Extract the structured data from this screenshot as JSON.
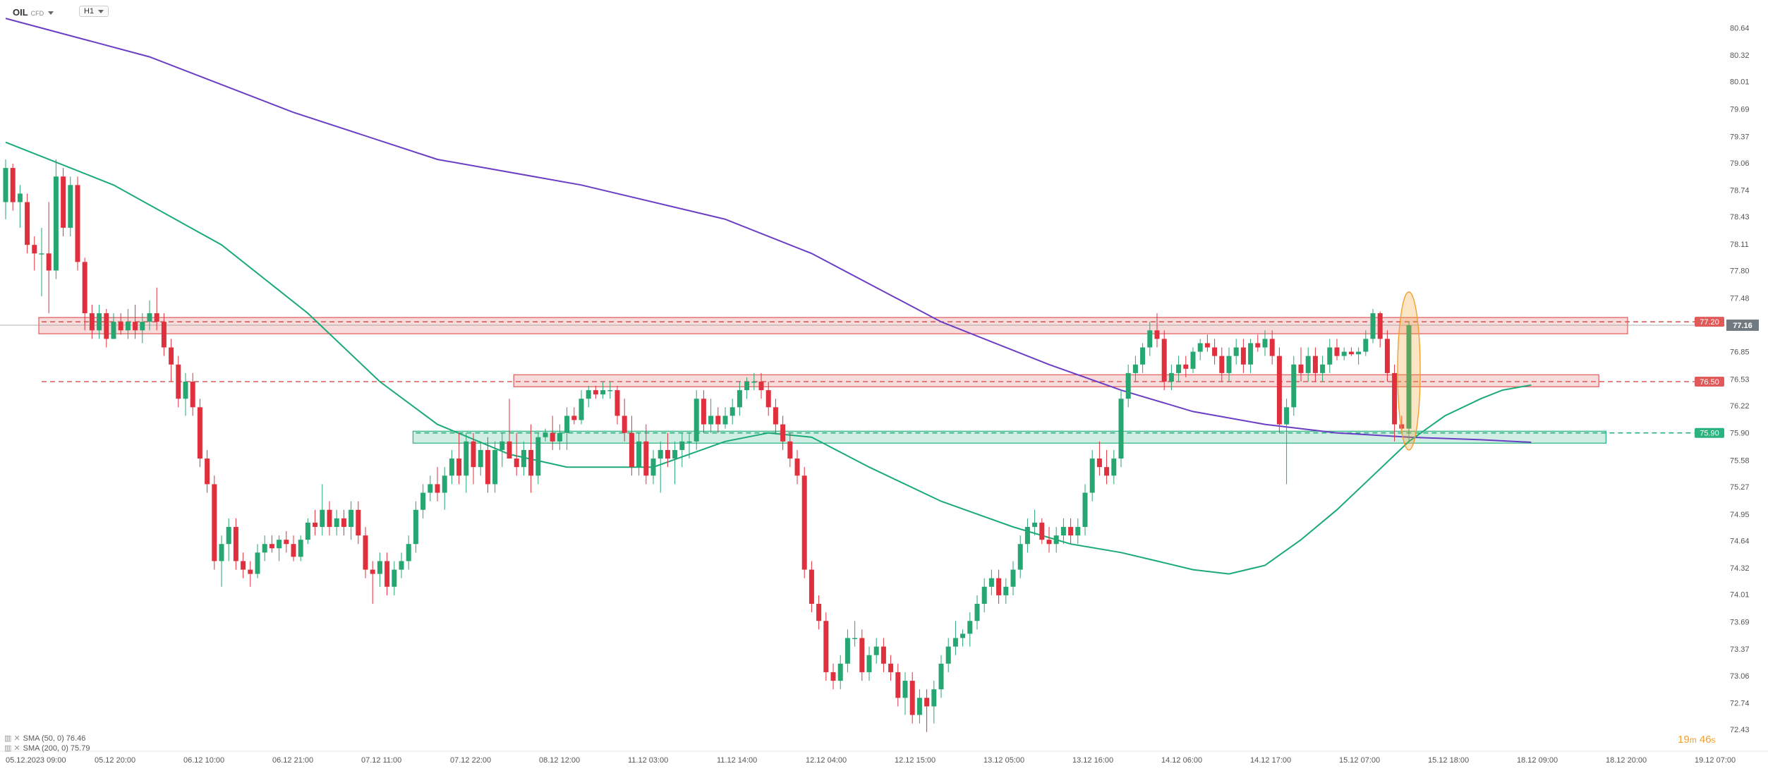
{
  "header": {
    "symbol": "OIL",
    "symbol_type": "CFD",
    "timeframe": "H1"
  },
  "legend": [
    {
      "text": "SMA (50, 0) 76.46"
    },
    {
      "text": "SMA (200, 0) 75.79"
    }
  ],
  "timer": {
    "min": "19",
    "min_unit": "m",
    "sec": "46",
    "sec_unit": "s"
  },
  "colors": {
    "up": "#26a671",
    "down": "#e0303d",
    "sma50": "#1aaa78",
    "sma200": "#6a3ec4",
    "resistance": "#e05a5a",
    "support": "#2ab37f",
    "highlight": "#f0a030"
  },
  "chart_data": {
    "type": "candlestick",
    "ylim": [
      72.2,
      80.8
    ],
    "y_ticks": [
      "80.64",
      "80.32",
      "80.01",
      "79.69",
      "79.37",
      "79.06",
      "78.74",
      "78.43",
      "78.11",
      "77.80",
      "77.48",
      "77.16",
      "76.85",
      "76.53",
      "76.22",
      "75.90",
      "75.58",
      "75.27",
      "74.95",
      "74.64",
      "74.32",
      "74.01",
      "73.69",
      "73.37",
      "73.06",
      "72.74",
      "72.43"
    ],
    "x_labels": [
      "05.12.2023 09:00",
      "05.12 20:00",
      "06.12 10:00",
      "06.12 21:00",
      "07.12 11:00",
      "07.12 22:00",
      "08.12 12:00",
      "11.12 03:00",
      "11.12 14:00",
      "12.12 04:00",
      "12.12 15:00",
      "13.12 05:00",
      "13.12 16:00",
      "14.12 06:00",
      "14.12 17:00",
      "15.12 07:00",
      "15.12 18:00",
      "18.12 09:00",
      "18.12 20:00",
      "19.12 07:00"
    ],
    "current_price": "77.16",
    "levels": [
      {
        "value": 77.2,
        "label": "77.20",
        "kind": "resistance"
      },
      {
        "value": 76.5,
        "label": "76.50",
        "kind": "resistance"
      },
      {
        "value": 75.9,
        "label": "75.90",
        "kind": "support"
      }
    ],
    "zones": [
      {
        "from": 77.06,
        "to": 77.25,
        "start": 5,
        "end": 225,
        "kind": "resistance"
      },
      {
        "from": 76.44,
        "to": 76.58,
        "start": 71,
        "end": 221,
        "kind": "resistance"
      },
      {
        "from": 75.78,
        "to": 75.92,
        "start": 57,
        "end": 222,
        "kind": "support"
      }
    ],
    "candles": [
      [
        78.6,
        79.1,
        78.4,
        79.0
      ],
      [
        79.0,
        79.05,
        78.5,
        78.6
      ],
      [
        78.6,
        78.8,
        78.3,
        78.7
      ],
      [
        78.6,
        78.7,
        78.0,
        78.1
      ],
      [
        78.1,
        78.2,
        77.8,
        78.0
      ],
      [
        78.0,
        78.3,
        77.5,
        78.0
      ],
      [
        78.0,
        78.6,
        77.3,
        77.8
      ],
      [
        77.8,
        79.1,
        77.7,
        78.9
      ],
      [
        78.9,
        79.0,
        78.2,
        78.3
      ],
      [
        78.3,
        78.9,
        78.2,
        78.8
      ],
      [
        78.8,
        78.9,
        77.8,
        77.9
      ],
      [
        77.9,
        77.95,
        77.1,
        77.3
      ],
      [
        77.3,
        77.4,
        77.0,
        77.1
      ],
      [
        77.1,
        77.4,
        77.0,
        77.3
      ],
      [
        77.3,
        77.35,
        76.9,
        77.0
      ],
      [
        77.0,
        77.3,
        77.0,
        77.2
      ],
      [
        77.2,
        77.3,
        77.05,
        77.1
      ],
      [
        77.1,
        77.35,
        77.0,
        77.2
      ],
      [
        77.2,
        77.4,
        77.0,
        77.1
      ],
      [
        77.1,
        77.3,
        76.95,
        77.2
      ],
      [
        77.2,
        77.45,
        77.1,
        77.3
      ],
      [
        77.3,
        77.6,
        77.1,
        77.2
      ],
      [
        77.2,
        77.3,
        76.8,
        76.9
      ],
      [
        76.9,
        77.0,
        76.5,
        76.7
      ],
      [
        76.7,
        76.8,
        76.2,
        76.3
      ],
      [
        76.3,
        76.6,
        76.1,
        76.5
      ],
      [
        76.5,
        76.6,
        76.1,
        76.2
      ],
      [
        76.2,
        76.3,
        75.5,
        75.6
      ],
      [
        75.6,
        75.7,
        75.2,
        75.3
      ],
      [
        75.3,
        75.4,
        74.3,
        74.4
      ],
      [
        74.4,
        74.7,
        74.1,
        74.6
      ],
      [
        74.6,
        74.9,
        74.4,
        74.8
      ],
      [
        74.8,
        74.9,
        74.3,
        74.4
      ],
      [
        74.4,
        74.5,
        74.2,
        74.3
      ],
      [
        74.3,
        74.4,
        74.1,
        74.25
      ],
      [
        74.25,
        74.6,
        74.2,
        74.5
      ],
      [
        74.5,
        74.7,
        74.4,
        74.6
      ],
      [
        74.6,
        74.7,
        74.5,
        74.55
      ],
      [
        74.55,
        74.7,
        74.4,
        74.65
      ],
      [
        74.65,
        74.75,
        74.5,
        74.6
      ],
      [
        74.6,
        74.7,
        74.4,
        74.45
      ],
      [
        74.45,
        74.7,
        74.4,
        74.65
      ],
      [
        74.65,
        74.9,
        74.6,
        74.85
      ],
      [
        74.85,
        75.0,
        74.7,
        74.8
      ],
      [
        74.8,
        75.3,
        74.7,
        75.0
      ],
      [
        75.0,
        75.1,
        74.7,
        74.8
      ],
      [
        74.8,
        75.0,
        74.7,
        74.9
      ],
      [
        74.9,
        75.0,
        74.7,
        74.8
      ],
      [
        74.8,
        75.1,
        74.65,
        75.0
      ],
      [
        75.0,
        75.1,
        74.6,
        74.7
      ],
      [
        74.7,
        74.8,
        74.2,
        74.3
      ],
      [
        74.3,
        74.4,
        73.9,
        74.25
      ],
      [
        74.25,
        74.5,
        74.1,
        74.4
      ],
      [
        74.4,
        74.5,
        74.0,
        74.1
      ],
      [
        74.1,
        74.4,
        74.0,
        74.3
      ],
      [
        74.3,
        74.5,
        74.2,
        74.4
      ],
      [
        74.4,
        74.7,
        74.3,
        74.6
      ],
      [
        74.6,
        75.1,
        74.5,
        75.0
      ],
      [
        75.0,
        75.3,
        74.9,
        75.2
      ],
      [
        75.2,
        75.4,
        75.1,
        75.3
      ],
      [
        75.3,
        75.5,
        75.1,
        75.2
      ],
      [
        75.2,
        75.5,
        75.0,
        75.4
      ],
      [
        75.4,
        75.7,
        75.3,
        75.6
      ],
      [
        75.6,
        75.9,
        75.3,
        75.4
      ],
      [
        75.4,
        75.9,
        75.2,
        75.8
      ],
      [
        75.8,
        75.9,
        75.3,
        75.5
      ],
      [
        75.5,
        75.8,
        75.4,
        75.7
      ],
      [
        75.7,
        75.85,
        75.2,
        75.3
      ],
      [
        75.3,
        75.8,
        75.2,
        75.7
      ],
      [
        75.7,
        75.9,
        75.5,
        75.8
      ],
      [
        75.8,
        76.3,
        75.6,
        75.6
      ],
      [
        75.6,
        75.9,
        75.4,
        75.5
      ],
      [
        75.5,
        75.8,
        75.4,
        75.7
      ],
      [
        75.7,
        76.0,
        75.2,
        75.4
      ],
      [
        75.4,
        75.9,
        75.3,
        75.85
      ],
      [
        75.85,
        75.95,
        75.8,
        75.9
      ],
      [
        75.9,
        76.1,
        75.7,
        75.8
      ],
      [
        75.8,
        76.0,
        75.7,
        75.9
      ],
      [
        75.9,
        76.2,
        75.7,
        76.1
      ],
      [
        76.1,
        76.2,
        76.0,
        76.05
      ],
      [
        76.05,
        76.4,
        76.0,
        76.3
      ],
      [
        76.3,
        76.45,
        76.2,
        76.4
      ],
      [
        76.4,
        76.45,
        76.3,
        76.35
      ],
      [
        76.35,
        76.5,
        76.3,
        76.4
      ],
      [
        76.4,
        76.5,
        76.3,
        76.4
      ],
      [
        76.4,
        76.45,
        76.0,
        76.1
      ],
      [
        76.1,
        76.3,
        75.8,
        75.9
      ],
      [
        75.9,
        76.1,
        75.4,
        75.5
      ],
      [
        75.5,
        75.9,
        75.4,
        75.8
      ],
      [
        75.8,
        76.0,
        75.3,
        75.4
      ],
      [
        75.4,
        75.7,
        75.3,
        75.6
      ],
      [
        75.6,
        75.8,
        75.2,
        75.7
      ],
      [
        75.7,
        75.9,
        75.5,
        75.6
      ],
      [
        75.6,
        75.8,
        75.3,
        75.7
      ],
      [
        75.7,
        75.9,
        75.5,
        75.8
      ],
      [
        75.8,
        75.9,
        75.6,
        75.8
      ],
      [
        75.8,
        76.4,
        75.7,
        76.3
      ],
      [
        76.3,
        76.4,
        75.9,
        76.0
      ],
      [
        76.0,
        76.3,
        75.9,
        76.1
      ],
      [
        76.1,
        76.2,
        75.9,
        76.0
      ],
      [
        76.0,
        76.2,
        75.95,
        76.1
      ],
      [
        76.1,
        76.3,
        76.0,
        76.2
      ],
      [
        76.2,
        76.5,
        76.1,
        76.4
      ],
      [
        76.4,
        76.55,
        76.3,
        76.5
      ],
      [
        76.5,
        76.6,
        76.4,
        76.5
      ],
      [
        76.5,
        76.6,
        76.3,
        76.4
      ],
      [
        76.4,
        76.5,
        76.1,
        76.2
      ],
      [
        76.2,
        76.3,
        75.9,
        76.0
      ],
      [
        76.0,
        76.1,
        75.7,
        75.8
      ],
      [
        75.8,
        75.9,
        75.5,
        75.6
      ],
      [
        75.6,
        75.7,
        75.3,
        75.4
      ],
      [
        75.4,
        75.5,
        74.2,
        74.3
      ],
      [
        74.3,
        74.4,
        73.8,
        73.9
      ],
      [
        73.9,
        74.0,
        73.6,
        73.7
      ],
      [
        73.7,
        73.8,
        73.0,
        73.1
      ],
      [
        73.1,
        73.2,
        72.9,
        73.0
      ],
      [
        73.0,
        73.3,
        72.9,
        73.2
      ],
      [
        73.2,
        73.6,
        73.1,
        73.5
      ],
      [
        73.5,
        73.7,
        73.4,
        73.5
      ],
      [
        73.5,
        73.6,
        73.0,
        73.1
      ],
      [
        73.1,
        73.4,
        73.0,
        73.3
      ],
      [
        73.3,
        73.5,
        73.2,
        73.4
      ],
      [
        73.4,
        73.5,
        73.1,
        73.2
      ],
      [
        73.2,
        73.3,
        73.0,
        73.1
      ],
      [
        73.1,
        73.2,
        72.7,
        72.8
      ],
      [
        72.8,
        73.1,
        72.6,
        73.0
      ],
      [
        73.0,
        73.1,
        72.5,
        72.6
      ],
      [
        72.6,
        72.9,
        72.5,
        72.8
      ],
      [
        72.8,
        72.9,
        72.4,
        72.7
      ],
      [
        72.7,
        73.0,
        72.5,
        72.9
      ],
      [
        72.9,
        73.3,
        72.8,
        73.2
      ],
      [
        73.2,
        73.5,
        73.1,
        73.4
      ],
      [
        73.4,
        73.7,
        73.3,
        73.5
      ],
      [
        73.5,
        73.6,
        73.4,
        73.55
      ],
      [
        73.55,
        73.8,
        73.4,
        73.7
      ],
      [
        73.7,
        74.0,
        73.6,
        73.9
      ],
      [
        73.9,
        74.2,
        73.8,
        74.1
      ],
      [
        74.1,
        74.3,
        74.0,
        74.2
      ],
      [
        74.2,
        74.3,
        73.9,
        74.0
      ],
      [
        74.0,
        74.2,
        73.9,
        74.1
      ],
      [
        74.1,
        74.4,
        74.0,
        74.3
      ],
      [
        74.3,
        74.7,
        74.2,
        74.6
      ],
      [
        74.6,
        74.9,
        74.5,
        74.8
      ],
      [
        74.8,
        75.0,
        74.7,
        74.85
      ],
      [
        74.85,
        74.9,
        74.6,
        74.65
      ],
      [
        74.65,
        74.8,
        74.5,
        74.6
      ],
      [
        74.6,
        74.8,
        74.5,
        74.7
      ],
      [
        74.7,
        74.9,
        74.6,
        74.8
      ],
      [
        74.8,
        74.9,
        74.6,
        74.7
      ],
      [
        74.7,
        74.9,
        74.6,
        74.8
      ],
      [
        74.8,
        75.3,
        74.7,
        75.2
      ],
      [
        75.2,
        75.7,
        75.1,
        75.6
      ],
      [
        75.6,
        75.8,
        75.4,
        75.5
      ],
      [
        75.5,
        75.7,
        75.3,
        75.4
      ],
      [
        75.4,
        75.7,
        75.3,
        75.6
      ],
      [
        75.6,
        76.4,
        75.5,
        76.3
      ],
      [
        76.3,
        76.7,
        76.2,
        76.6
      ],
      [
        76.6,
        76.8,
        76.5,
        76.7
      ],
      [
        76.7,
        76.95,
        76.6,
        76.9
      ],
      [
        76.9,
        77.2,
        76.8,
        77.1
      ],
      [
        77.1,
        77.3,
        76.9,
        77.0
      ],
      [
        77.0,
        77.1,
        76.4,
        76.5
      ],
      [
        76.5,
        76.7,
        76.4,
        76.6
      ],
      [
        76.6,
        76.8,
        76.5,
        76.7
      ],
      [
        76.7,
        76.8,
        76.55,
        76.65
      ],
      [
        76.65,
        76.9,
        76.6,
        76.85
      ],
      [
        76.85,
        77.0,
        76.75,
        76.95
      ],
      [
        76.95,
        77.05,
        76.85,
        76.9
      ],
      [
        76.9,
        77.0,
        76.7,
        76.8
      ],
      [
        76.8,
        76.9,
        76.5,
        76.6
      ],
      [
        76.6,
        76.9,
        76.5,
        76.8
      ],
      [
        76.8,
        77.0,
        76.7,
        76.9
      ],
      [
        76.9,
        77.0,
        76.6,
        76.7
      ],
      [
        76.7,
        77.0,
        76.6,
        76.95
      ],
      [
        76.95,
        77.05,
        76.85,
        76.9
      ],
      [
        76.9,
        77.1,
        76.8,
        77.0
      ],
      [
        77.0,
        77.1,
        76.7,
        76.8
      ],
      [
        76.8,
        76.9,
        75.9,
        76.0
      ],
      [
        76.0,
        76.3,
        75.3,
        76.2
      ],
      [
        76.2,
        76.8,
        76.1,
        76.7
      ],
      [
        76.7,
        76.9,
        76.5,
        76.6
      ],
      [
        76.6,
        76.9,
        76.5,
        76.8
      ],
      [
        76.8,
        76.9,
        76.5,
        76.6
      ],
      [
        76.6,
        76.8,
        76.5,
        76.7
      ],
      [
        76.7,
        77.0,
        76.6,
        76.9
      ],
      [
        76.9,
        77.0,
        76.75,
        76.8
      ],
      [
        76.8,
        76.9,
        76.75,
        76.85
      ],
      [
        76.85,
        76.9,
        76.8,
        76.82
      ],
      [
        76.82,
        76.9,
        76.7,
        76.85
      ],
      [
        76.85,
        77.1,
        76.8,
        77.0
      ],
      [
        77.0,
        77.35,
        76.95,
        77.3
      ],
      [
        77.3,
        77.32,
        76.9,
        77.0
      ],
      [
        77.0,
        77.1,
        76.5,
        76.6
      ],
      [
        76.6,
        76.7,
        75.8,
        76.0
      ],
      [
        76.0,
        76.1,
        75.9,
        75.95
      ],
      [
        75.95,
        77.2,
        75.8,
        77.16
      ]
    ],
    "sma50": [
      [
        0,
        79.3
      ],
      [
        15,
        78.8
      ],
      [
        30,
        78.1
      ],
      [
        42,
        77.3
      ],
      [
        52,
        76.5
      ],
      [
        60,
        76.0
      ],
      [
        70,
        75.65
      ],
      [
        78,
        75.5
      ],
      [
        90,
        75.5
      ],
      [
        100,
        75.8
      ],
      [
        106,
        75.9
      ],
      [
        112,
        75.85
      ],
      [
        120,
        75.5
      ],
      [
        130,
        75.1
      ],
      [
        140,
        74.8
      ],
      [
        148,
        74.6
      ],
      [
        155,
        74.5
      ],
      [
        160,
        74.4
      ],
      [
        165,
        74.3
      ],
      [
        170,
        74.25
      ],
      [
        175,
        74.35
      ],
      [
        180,
        74.65
      ],
      [
        185,
        75.0
      ],
      [
        190,
        75.4
      ],
      [
        195,
        75.8
      ],
      [
        200,
        76.1
      ],
      [
        205,
        76.3
      ],
      [
        208,
        76.4
      ],
      [
        212,
        76.46
      ]
    ],
    "sma200": [
      [
        0,
        80.75
      ],
      [
        20,
        80.3
      ],
      [
        40,
        79.65
      ],
      [
        60,
        79.1
      ],
      [
        80,
        78.8
      ],
      [
        100,
        78.4
      ],
      [
        112,
        78.0
      ],
      [
        130,
        77.2
      ],
      [
        145,
        76.7
      ],
      [
        155,
        76.4
      ],
      [
        165,
        76.15
      ],
      [
        175,
        76.0
      ],
      [
        185,
        75.9
      ],
      [
        195,
        75.85
      ],
      [
        205,
        75.82
      ],
      [
        212,
        75.79
      ]
    ]
  }
}
